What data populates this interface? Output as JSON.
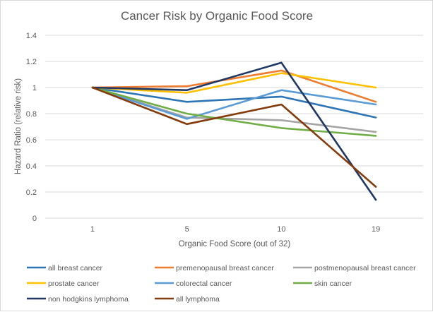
{
  "chart_data": {
    "type": "line",
    "title": "Cancer Risk by Organic Food Score",
    "xlabel": "Organic Food Score (out of 32)",
    "ylabel": "Hazard Ratio (relative risk)",
    "categories": [
      "1",
      "5",
      "10",
      "19"
    ],
    "ylim": [
      0,
      1.4
    ],
    "yticks": [
      "0",
      "0.2",
      "0.4",
      "0.6",
      "0.8",
      "1",
      "1.2",
      "1.4"
    ],
    "grid": true,
    "legend_position": "bottom",
    "series": [
      {
        "name": "all breast cancer",
        "color": "#2e75b6",
        "values": [
          1.0,
          0.89,
          0.93,
          0.77
        ]
      },
      {
        "name": "premenopausal breast cancer",
        "color": "#ed7d31",
        "values": [
          1.0,
          1.01,
          1.13,
          0.89
        ]
      },
      {
        "name": "postmenopausal breast cancer",
        "color": "#a5a5a5",
        "values": [
          1.0,
          0.77,
          0.75,
          0.66
        ]
      },
      {
        "name": "prostate cancer",
        "color": "#ffc000",
        "values": [
          1.0,
          0.96,
          1.11,
          1.0
        ]
      },
      {
        "name": "colorectal cancer",
        "color": "#5b9bd5",
        "values": [
          1.0,
          0.76,
          0.98,
          0.87
        ]
      },
      {
        "name": "skin cancer",
        "color": "#70ad47",
        "values": [
          1.0,
          0.8,
          0.69,
          0.63
        ]
      },
      {
        "name": "non hodgkins lymphoma",
        "color": "#203864",
        "values": [
          1.0,
          0.98,
          1.19,
          0.14
        ]
      },
      {
        "name": "all lymphoma",
        "color": "#843c0c",
        "values": [
          1.0,
          0.72,
          0.87,
          0.24
        ]
      }
    ]
  }
}
